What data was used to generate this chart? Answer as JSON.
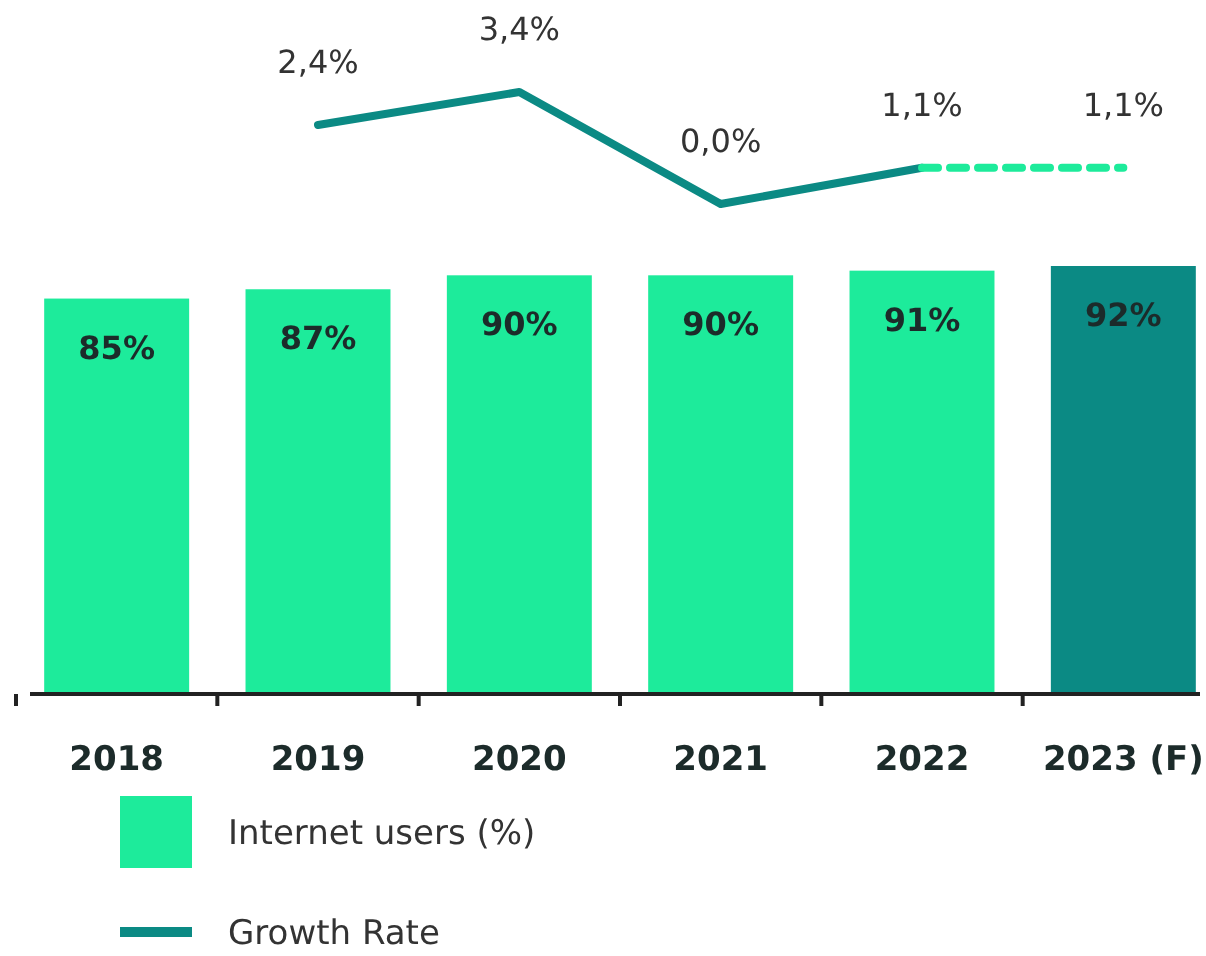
{
  "chart_data": [
    {
      "type": "line",
      "categories": [
        null,
        null,
        null,
        null,
        null,
        null
      ],
      "legend": "bottom left",
      "series": [
        {
          "name": "Growth Rate",
          "color": "#0b8a84",
          "line_style": "solid",
          "values": [
            null,
            2.4,
            3.4,
            0.0,
            1.1,
            null
          ],
          "value_labels": [
            null,
            "2,4%",
            "3,4%",
            "0,0%",
            "1,1%",
            null
          ]
        },
        {
          "color": "#1deb9b",
          "line_style": "dashed",
          "values": [
            null,
            null,
            null,
            null,
            1.1,
            1.1
          ],
          "value_labels": [
            null,
            null,
            null,
            null,
            null,
            "1,1%"
          ]
        }
      ]
    },
    {
      "type": "bar",
      "categories": [
        "2018",
        "2019",
        "2020",
        "2021",
        "2022",
        "2023 (F)"
      ],
      "legend": "bottom left",
      "tick_labels": "x",
      "series": [
        {
          "name": "Internet users (%)",
          "color": "#1deb9b",
          "colors": [
            "#1deb9b",
            "#1deb9b",
            "#1deb9b",
            "#1deb9b",
            "#1deb9b",
            "#0b8a84"
          ],
          "values": [
            85,
            87,
            90,
            90,
            91,
            92
          ],
          "value_labels": [
            "85%",
            "87%",
            "90%",
            "90%",
            "91%",
            "92%"
          ]
        }
      ]
    }
  ]
}
